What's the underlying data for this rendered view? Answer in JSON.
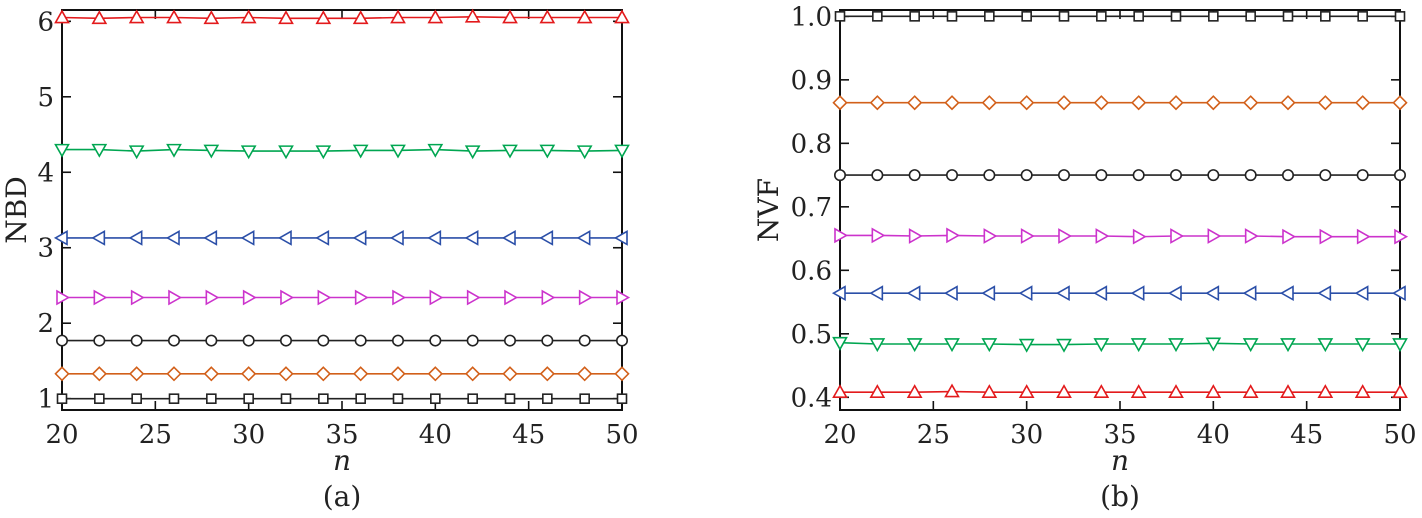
{
  "panels": [
    {
      "caption": "(a)",
      "chart_data": {
        "type": "line",
        "x": [
          20,
          22,
          24,
          26,
          28,
          30,
          32,
          34,
          36,
          38,
          40,
          42,
          44,
          46,
          48,
          50
        ],
        "xlabel": "n",
        "ylabel": "NBD",
        "xlim": [
          20,
          50
        ],
        "ylim": [
          0.85,
          6.15
        ],
        "xticks": [
          20,
          25,
          30,
          35,
          40,
          45,
          50
        ],
        "yticks": [
          1,
          2,
          3,
          4,
          5,
          6
        ],
        "ytick_labels": [
          "1",
          "2",
          "3",
          "4",
          "5",
          "6"
        ],
        "grid": false,
        "series": [
          {
            "color": "#e31a1c",
            "marker": "triangle-up",
            "values": [
              6.05,
              6.04,
              6.05,
              6.05,
              6.04,
              6.05,
              6.04,
              6.04,
              6.04,
              6.05,
              6.05,
              6.06,
              6.05,
              6.05,
              6.05,
              6.05
            ]
          },
          {
            "color": "#00a651",
            "marker": "triangle-down",
            "values": [
              4.3,
              4.3,
              4.28,
              4.3,
              4.29,
              4.28,
              4.28,
              4.28,
              4.29,
              4.29,
              4.3,
              4.28,
              4.29,
              4.29,
              4.28,
              4.29
            ]
          },
          {
            "color": "#2b4fa8",
            "marker": "triangle-left",
            "values": [
              3.13,
              3.13,
              3.13,
              3.13,
              3.13,
              3.13,
              3.13,
              3.13,
              3.13,
              3.13,
              3.13,
              3.13,
              3.13,
              3.13,
              3.13,
              3.13
            ]
          },
          {
            "color": "#cc33cc",
            "marker": "triangle-right",
            "values": [
              2.34,
              2.34,
              2.34,
              2.34,
              2.34,
              2.34,
              2.34,
              2.34,
              2.34,
              2.34,
              2.34,
              2.34,
              2.34,
              2.34,
              2.34,
              2.34
            ]
          },
          {
            "color": "#222222",
            "marker": "circle",
            "values": [
              1.77,
              1.77,
              1.77,
              1.77,
              1.77,
              1.77,
              1.77,
              1.77,
              1.77,
              1.77,
              1.77,
              1.77,
              1.77,
              1.77,
              1.77,
              1.77
            ]
          },
          {
            "color": "#d2601a",
            "marker": "diamond",
            "values": [
              1.33,
              1.33,
              1.33,
              1.33,
              1.33,
              1.33,
              1.33,
              1.33,
              1.33,
              1.33,
              1.33,
              1.33,
              1.33,
              1.33,
              1.33,
              1.33
            ]
          },
          {
            "color": "#222222",
            "marker": "square",
            "values": [
              1.0,
              1.0,
              1.0,
              1.0,
              1.0,
              1.0,
              1.0,
              1.0,
              1.0,
              1.0,
              1.0,
              1.0,
              1.0,
              1.0,
              1.0,
              1.0
            ]
          }
        ]
      }
    },
    {
      "caption": "(b)",
      "chart_data": {
        "type": "line",
        "x": [
          20,
          22,
          24,
          26,
          28,
          30,
          32,
          34,
          36,
          38,
          40,
          42,
          44,
          46,
          48,
          50
        ],
        "xlabel": "n",
        "ylabel": "NVF",
        "xlim": [
          20,
          50
        ],
        "ylim": [
          0.38,
          1.01
        ],
        "xticks": [
          20,
          25,
          30,
          35,
          40,
          45,
          50
        ],
        "yticks": [
          0.4,
          0.5,
          0.6,
          0.7,
          0.8,
          0.9,
          1.0
        ],
        "ytick_labels": [
          "0.4",
          "0.5",
          "0.6",
          "0.7",
          "0.8",
          "0.9",
          "1.0"
        ],
        "grid": false,
        "series": [
          {
            "color": "#222222",
            "marker": "square",
            "values": [
              1.0,
              1.0,
              1.0,
              1.0,
              1.0,
              1.0,
              1.0,
              1.0,
              1.0,
              1.0,
              1.0,
              1.0,
              1.0,
              1.0,
              1.0,
              1.0
            ]
          },
          {
            "color": "#d2601a",
            "marker": "diamond",
            "values": [
              0.864,
              0.864,
              0.864,
              0.864,
              0.864,
              0.864,
              0.864,
              0.864,
              0.864,
              0.864,
              0.864,
              0.864,
              0.864,
              0.864,
              0.864,
              0.864
            ]
          },
          {
            "color": "#222222",
            "marker": "circle",
            "values": [
              0.75,
              0.75,
              0.75,
              0.75,
              0.75,
              0.75,
              0.75,
              0.75,
              0.75,
              0.75,
              0.75,
              0.75,
              0.75,
              0.75,
              0.75,
              0.75
            ]
          },
          {
            "color": "#cc33cc",
            "marker": "triangle-right",
            "values": [
              0.655,
              0.655,
              0.654,
              0.655,
              0.654,
              0.654,
              0.654,
              0.654,
              0.653,
              0.654,
              0.654,
              0.654,
              0.653,
              0.653,
              0.653,
              0.653
            ]
          },
          {
            "color": "#2b4fa8",
            "marker": "triangle-left",
            "values": [
              0.564,
              0.564,
              0.564,
              0.564,
              0.564,
              0.564,
              0.564,
              0.564,
              0.564,
              0.564,
              0.564,
              0.564,
              0.564,
              0.564,
              0.564,
              0.564
            ]
          },
          {
            "color": "#00a651",
            "marker": "triangle-down",
            "values": [
              0.486,
              0.484,
              0.484,
              0.484,
              0.484,
              0.483,
              0.483,
              0.484,
              0.484,
              0.484,
              0.485,
              0.484,
              0.484,
              0.484,
              0.484,
              0.484
            ]
          },
          {
            "color": "#e31a1c",
            "marker": "triangle-up",
            "values": [
              0.408,
              0.408,
              0.408,
              0.409,
              0.408,
              0.408,
              0.408,
              0.408,
              0.408,
              0.408,
              0.408,
              0.408,
              0.408,
              0.408,
              0.408,
              0.408
            ]
          }
        ]
      }
    }
  ]
}
